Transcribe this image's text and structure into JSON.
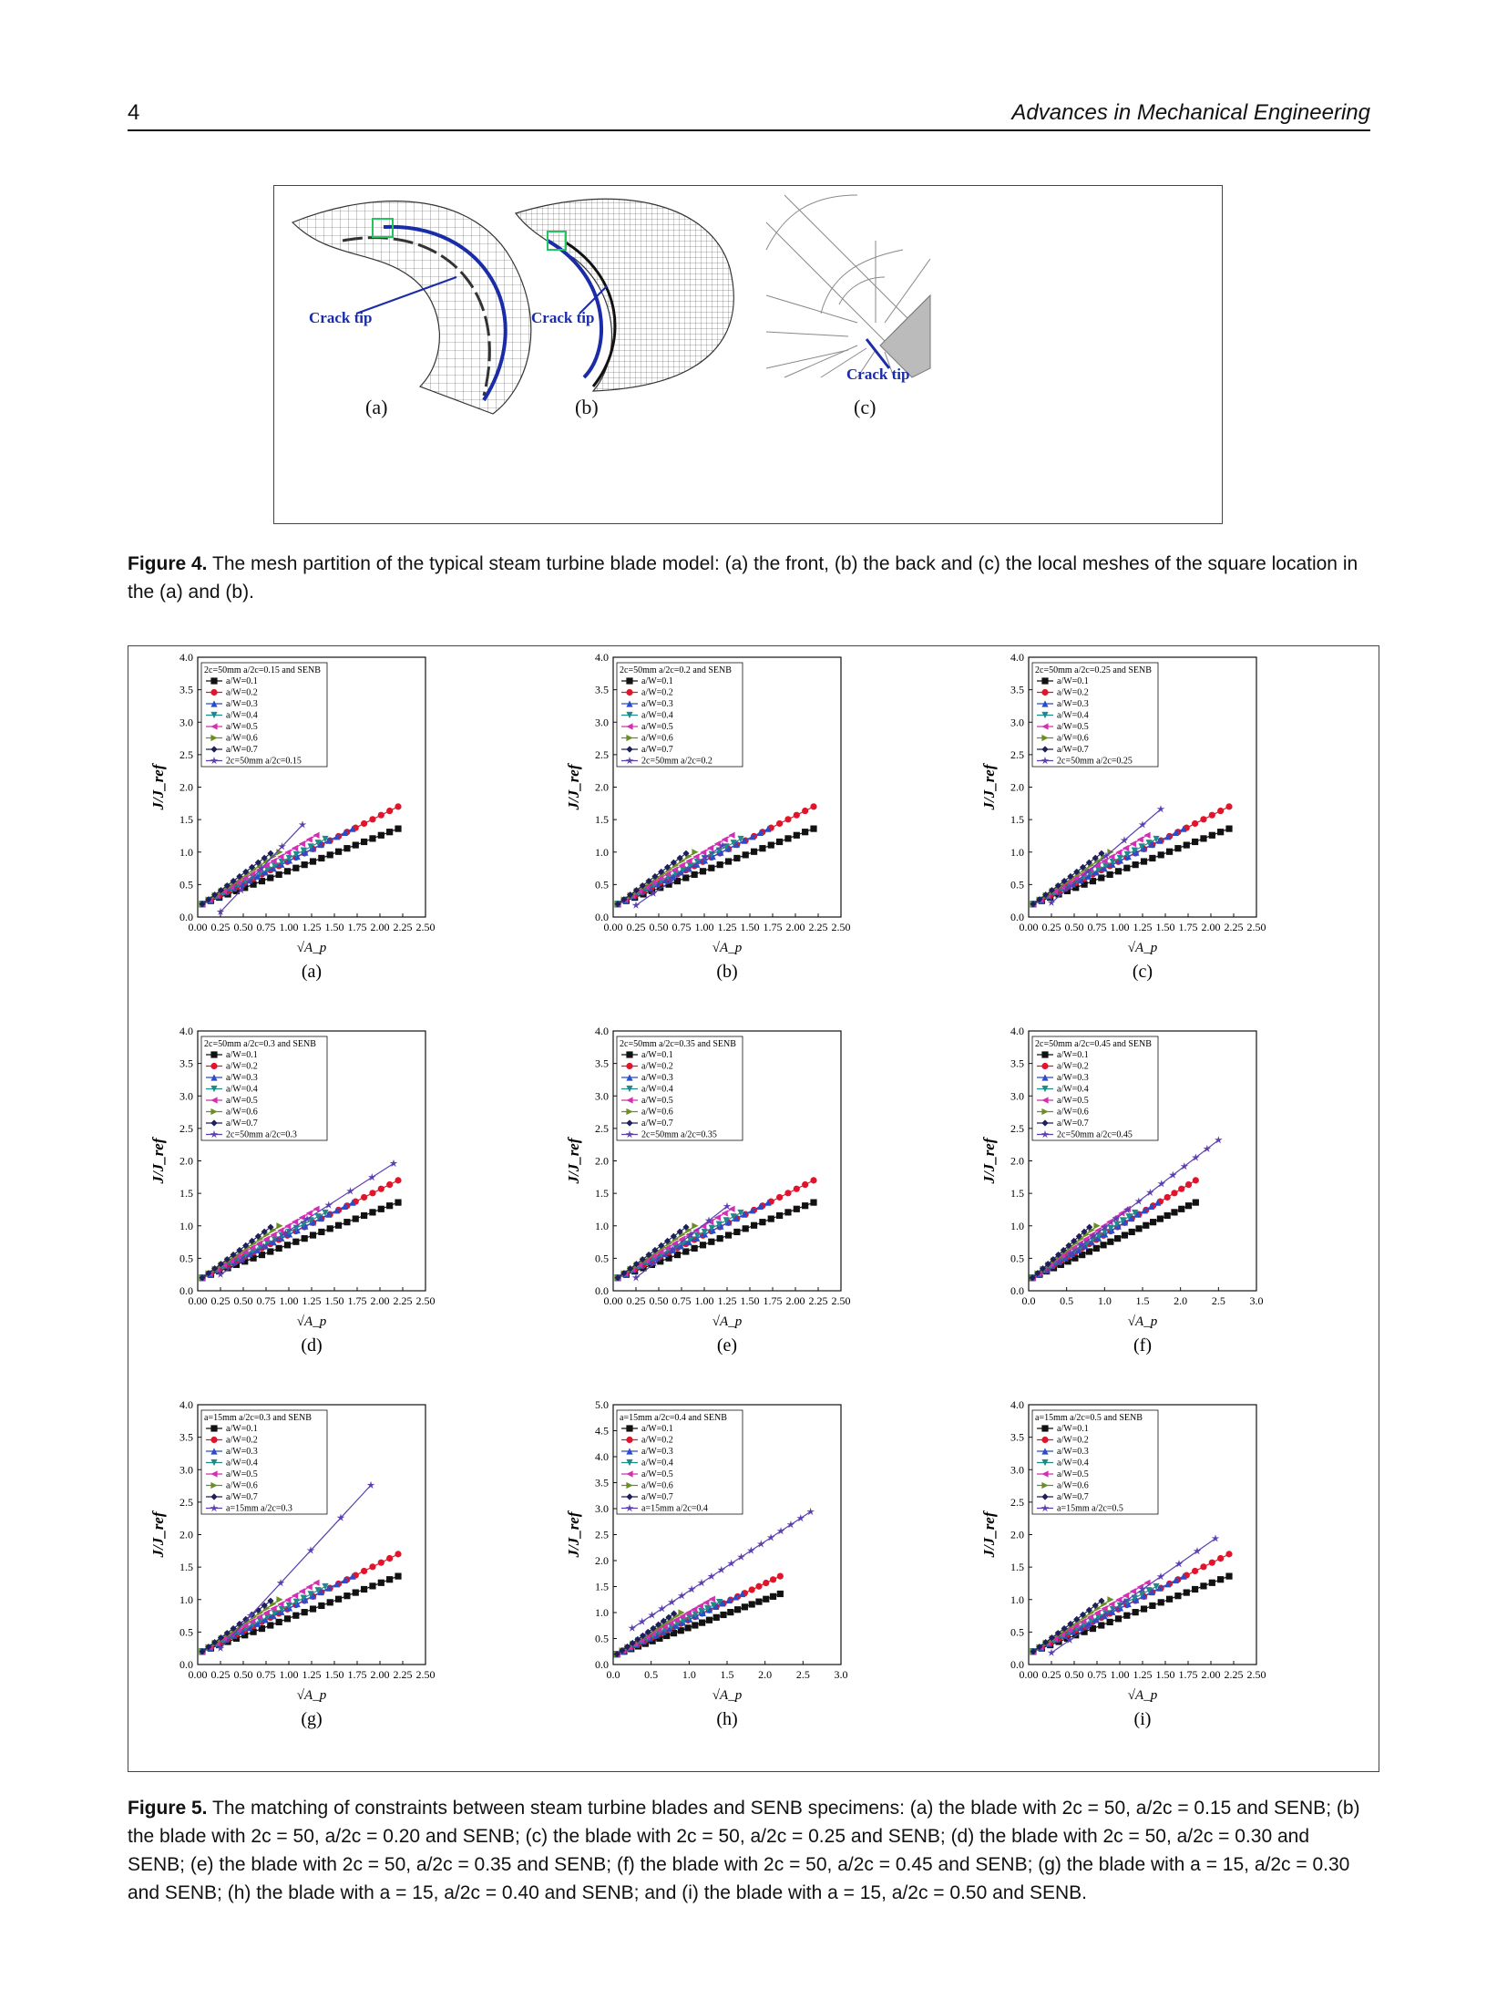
{
  "header": {
    "page_number": "4",
    "journal": "Advances in Mechanical Engineering"
  },
  "figure4": {
    "panels": [
      {
        "label": "(a)",
        "annotation": "Crack tip"
      },
      {
        "label": "(b)",
        "annotation": "Crack tip"
      },
      {
        "label": "(c)",
        "annotation": "Crack tip"
      }
    ],
    "caption_label": "Figure 4.",
    "caption_text": "The mesh partition of the typical steam turbine blade model: (a) the front, (b) the back and (c) the local meshes of the square location in the (a) and (b)."
  },
  "figure5": {
    "caption_label": "Figure 5.",
    "caption_text": "The matching of constraints between steam turbine blades and SENB specimens: (a) the blade with 2c = 50, a/2c = 0.15 and SENB; (b) the blade with 2c = 50, a/2c = 0.20 and SENB; (c) the blade with 2c = 50, a/2c = 0.25 and SENB; (d) the blade with 2c = 50, a/2c = 0.30 and SENB; (e) the blade with 2c = 50, a/2c = 0.35 and SENB; (f) the blade with 2c = 50, a/2c = 0.45 and SENB; (g) the blade with a = 15, a/2c = 0.30 and SENB; (h) the blade with a = 15, a/2c = 0.40 and SENB; and (i) the blade with a = 15, a/2c = 0.50 and SENB."
  },
  "colors": {
    "senb_series": [
      "#111111",
      "#e0142a",
      "#2a4cc8",
      "#1f8a8a",
      "#d42fb3",
      "#6b8e23",
      "#1f1f5a"
    ],
    "blade_series": "#5b3fb0"
  },
  "chart_data": [
    {
      "panel": "(a)",
      "type": "line",
      "ylabel": "J/J_ref",
      "xlabel": "√A_p",
      "xlim": [
        0,
        2.5
      ],
      "ylim": [
        0,
        4.0
      ],
      "xticks": [
        "0.00",
        "0.25",
        "0.50",
        "0.75",
        "1.00",
        "1.25",
        "1.50",
        "1.75",
        "2.00",
        "2.25",
        "2.50"
      ],
      "yticks": [
        "0.0",
        "0.5",
        "1.0",
        "1.5",
        "2.0",
        "2.5",
        "3.0",
        "3.5",
        "4.0"
      ],
      "legend_title": "2c=50mm a/2c=0.15 and SENB",
      "series": [
        {
          "name": "a/W=0.1",
          "x0": 0.05,
          "y0": 0.2,
          "x1": 2.2,
          "y1": 1.36,
          "n": 24
        },
        {
          "name": "a/W=0.2",
          "x0": 0.05,
          "y0": 0.2,
          "x1": 2.2,
          "y1": 1.7,
          "n": 24
        },
        {
          "name": "a/W=0.3",
          "x0": 0.05,
          "y0": 0.2,
          "x1": 1.7,
          "y1": 1.36,
          "n": 20
        },
        {
          "name": "a/W=0.4",
          "x0": 0.05,
          "y0": 0.2,
          "x1": 1.4,
          "y1": 1.2,
          "n": 18
        },
        {
          "name": "a/W=0.5",
          "x0": 0.05,
          "y0": 0.2,
          "x1": 1.3,
          "y1": 1.26,
          "n": 17
        },
        {
          "name": "a/W=0.6",
          "x0": 0.05,
          "y0": 0.2,
          "x1": 0.9,
          "y1": 1.0,
          "n": 13
        },
        {
          "name": "a/W=0.7",
          "x0": 0.05,
          "y0": 0.2,
          "x1": 0.8,
          "y1": 0.98,
          "n": 12
        },
        {
          "name": "2c=50mm a/2c=0.15",
          "x0": 0.25,
          "y0": 0.08,
          "x1": 1.15,
          "y1": 1.42,
          "n": 5
        }
      ]
    },
    {
      "panel": "(b)",
      "type": "line",
      "ylabel": "J/J_ref",
      "xlabel": "√A_p",
      "xlim": [
        0,
        2.5
      ],
      "ylim": [
        0,
        4.0
      ],
      "xticks": [
        "0.00",
        "0.25",
        "0.50",
        "0.75",
        "1.00",
        "1.25",
        "1.50",
        "1.75",
        "2.00",
        "2.25",
        "2.50"
      ],
      "yticks": [
        "0.0",
        "0.5",
        "1.0",
        "1.5",
        "2.0",
        "2.5",
        "3.0",
        "3.5",
        "4.0"
      ],
      "legend_title": "2c=50mm a/2c=0.2 and SENB",
      "series": [
        {
          "name": "a/W=0.1",
          "x0": 0.05,
          "y0": 0.2,
          "x1": 2.2,
          "y1": 1.36,
          "n": 24
        },
        {
          "name": "a/W=0.2",
          "x0": 0.05,
          "y0": 0.2,
          "x1": 2.2,
          "y1": 1.7,
          "n": 24
        },
        {
          "name": "a/W=0.3",
          "x0": 0.05,
          "y0": 0.2,
          "x1": 1.7,
          "y1": 1.36,
          "n": 20
        },
        {
          "name": "a/W=0.4",
          "x0": 0.05,
          "y0": 0.2,
          "x1": 1.4,
          "y1": 1.2,
          "n": 18
        },
        {
          "name": "a/W=0.5",
          "x0": 0.05,
          "y0": 0.2,
          "x1": 1.3,
          "y1": 1.26,
          "n": 17
        },
        {
          "name": "a/W=0.6",
          "x0": 0.05,
          "y0": 0.2,
          "x1": 0.9,
          "y1": 1.0,
          "n": 13
        },
        {
          "name": "a/W=0.7",
          "x0": 0.05,
          "y0": 0.2,
          "x1": 0.8,
          "y1": 0.98,
          "n": 12
        },
        {
          "name": "2c=50mm a/2c=0.2",
          "x0": 0.25,
          "y0": 0.18,
          "x1": 1.2,
          "y1": 1.1,
          "n": 6
        }
      ]
    },
    {
      "panel": "(c)",
      "type": "line",
      "ylabel": "J/J_ref",
      "xlabel": "√A_p",
      "xlim": [
        0,
        2.5
      ],
      "ylim": [
        0,
        4.0
      ],
      "xticks": [
        "0.00",
        "0.25",
        "0.50",
        "0.75",
        "1.00",
        "1.25",
        "1.50",
        "1.75",
        "2.00",
        "2.25",
        "2.50"
      ],
      "yticks": [
        "0.0",
        "0.5",
        "1.0",
        "1.5",
        "2.0",
        "2.5",
        "3.0",
        "3.5",
        "4.0"
      ],
      "legend_title": "2c=50mm a/2c=0.25 and SENB",
      "series": [
        {
          "name": "a/W=0.1",
          "x0": 0.05,
          "y0": 0.2,
          "x1": 2.2,
          "y1": 1.36,
          "n": 24
        },
        {
          "name": "a/W=0.2",
          "x0": 0.05,
          "y0": 0.2,
          "x1": 2.2,
          "y1": 1.7,
          "n": 24
        },
        {
          "name": "a/W=0.3",
          "x0": 0.05,
          "y0": 0.2,
          "x1": 1.7,
          "y1": 1.36,
          "n": 20
        },
        {
          "name": "a/W=0.4",
          "x0": 0.05,
          "y0": 0.2,
          "x1": 1.4,
          "y1": 1.2,
          "n": 18
        },
        {
          "name": "a/W=0.5",
          "x0": 0.05,
          "y0": 0.2,
          "x1": 1.3,
          "y1": 1.26,
          "n": 17
        },
        {
          "name": "a/W=0.6",
          "x0": 0.05,
          "y0": 0.2,
          "x1": 0.9,
          "y1": 1.0,
          "n": 13
        },
        {
          "name": "a/W=0.7",
          "x0": 0.05,
          "y0": 0.2,
          "x1": 0.8,
          "y1": 0.98,
          "n": 12
        },
        {
          "name": "2c=50mm a/2c=0.25",
          "x0": 0.25,
          "y0": 0.22,
          "x1": 1.45,
          "y1": 1.66,
          "n": 7
        }
      ]
    },
    {
      "panel": "(d)",
      "type": "line",
      "ylabel": "J/J_ref",
      "xlabel": "√A_p",
      "xlim": [
        0,
        2.5
      ],
      "ylim": [
        0,
        4.0
      ],
      "xticks": [
        "0.00",
        "0.25",
        "0.50",
        "0.75",
        "1.00",
        "1.25",
        "1.50",
        "1.75",
        "2.00",
        "2.25",
        "2.50"
      ],
      "yticks": [
        "0.0",
        "0.5",
        "1.0",
        "1.5",
        "2.0",
        "2.5",
        "3.0",
        "3.5",
        "4.0"
      ],
      "legend_title": "2c=50mm a/2c=0.3 and SENB",
      "series": [
        {
          "name": "a/W=0.1",
          "x0": 0.05,
          "y0": 0.2,
          "x1": 2.2,
          "y1": 1.36,
          "n": 24
        },
        {
          "name": "a/W=0.2",
          "x0": 0.05,
          "y0": 0.2,
          "x1": 2.2,
          "y1": 1.7,
          "n": 24
        },
        {
          "name": "a/W=0.3",
          "x0": 0.05,
          "y0": 0.2,
          "x1": 1.7,
          "y1": 1.36,
          "n": 20
        },
        {
          "name": "a/W=0.4",
          "x0": 0.05,
          "y0": 0.2,
          "x1": 1.4,
          "y1": 1.2,
          "n": 18
        },
        {
          "name": "a/W=0.5",
          "x0": 0.05,
          "y0": 0.2,
          "x1": 1.3,
          "y1": 1.26,
          "n": 17
        },
        {
          "name": "a/W=0.6",
          "x0": 0.05,
          "y0": 0.2,
          "x1": 0.9,
          "y1": 1.0,
          "n": 13
        },
        {
          "name": "a/W=0.7",
          "x0": 0.05,
          "y0": 0.2,
          "x1": 0.8,
          "y1": 0.98,
          "n": 12
        },
        {
          "name": "2c=50mm a/2c=0.3",
          "x0": 0.25,
          "y0": 0.25,
          "x1": 2.15,
          "y1": 1.96,
          "n": 9
        }
      ]
    },
    {
      "panel": "(e)",
      "type": "line",
      "ylabel": "J/J_ref",
      "xlabel": "√A_p",
      "xlim": [
        0,
        2.5
      ],
      "ylim": [
        0,
        4.0
      ],
      "xticks": [
        "0.00",
        "0.25",
        "0.50",
        "0.75",
        "1.00",
        "1.25",
        "1.50",
        "1.75",
        "2.00",
        "2.25",
        "2.50"
      ],
      "yticks": [
        "0.0",
        "0.5",
        "1.0",
        "1.5",
        "2.0",
        "2.5",
        "3.0",
        "3.5",
        "4.0"
      ],
      "legend_title": "2c=50mm a/2c=0.35 and SENB",
      "series": [
        {
          "name": "a/W=0.1",
          "x0": 0.05,
          "y0": 0.2,
          "x1": 2.2,
          "y1": 1.36,
          "n": 24
        },
        {
          "name": "a/W=0.2",
          "x0": 0.05,
          "y0": 0.2,
          "x1": 2.2,
          "y1": 1.7,
          "n": 24
        },
        {
          "name": "a/W=0.3",
          "x0": 0.05,
          "y0": 0.2,
          "x1": 1.7,
          "y1": 1.36,
          "n": 20
        },
        {
          "name": "a/W=0.4",
          "x0": 0.05,
          "y0": 0.2,
          "x1": 1.4,
          "y1": 1.2,
          "n": 18
        },
        {
          "name": "a/W=0.5",
          "x0": 0.05,
          "y0": 0.2,
          "x1": 1.3,
          "y1": 1.26,
          "n": 17
        },
        {
          "name": "a/W=0.6",
          "x0": 0.05,
          "y0": 0.2,
          "x1": 0.9,
          "y1": 1.0,
          "n": 13
        },
        {
          "name": "a/W=0.7",
          "x0": 0.05,
          "y0": 0.2,
          "x1": 0.8,
          "y1": 0.98,
          "n": 12
        },
        {
          "name": "2c=50mm a/2c=0.35",
          "x0": 0.25,
          "y0": 0.2,
          "x1": 1.25,
          "y1": 1.3,
          "n": 6
        }
      ]
    },
    {
      "panel": "(f)",
      "type": "line",
      "ylabel": "J/J_ref",
      "xlabel": "√A_p",
      "xlim": [
        0,
        3.0
      ],
      "ylim": [
        0,
        4.0
      ],
      "xticks": [
        "0.0",
        "0.5",
        "1.0",
        "1.5",
        "2.0",
        "2.5",
        "3.0"
      ],
      "yticks": [
        "0.0",
        "0.5",
        "1.0",
        "1.5",
        "2.0",
        "2.5",
        "3.0",
        "3.5",
        "4.0"
      ],
      "legend_title": "2c=50mm a/2c=0.45 and SENB",
      "series": [
        {
          "name": "a/W=0.1",
          "x0": 0.05,
          "y0": 0.2,
          "x1": 2.2,
          "y1": 1.36,
          "n": 24
        },
        {
          "name": "a/W=0.2",
          "x0": 0.05,
          "y0": 0.2,
          "x1": 2.2,
          "y1": 1.7,
          "n": 24
        },
        {
          "name": "a/W=0.3",
          "x0": 0.05,
          "y0": 0.2,
          "x1": 1.7,
          "y1": 1.36,
          "n": 20
        },
        {
          "name": "a/W=0.4",
          "x0": 0.05,
          "y0": 0.2,
          "x1": 1.4,
          "y1": 1.2,
          "n": 18
        },
        {
          "name": "a/W=0.5",
          "x0": 0.05,
          "y0": 0.2,
          "x1": 1.3,
          "y1": 1.26,
          "n": 17
        },
        {
          "name": "a/W=0.6",
          "x0": 0.05,
          "y0": 0.2,
          "x1": 0.9,
          "y1": 1.0,
          "n": 13
        },
        {
          "name": "a/W=0.7",
          "x0": 0.05,
          "y0": 0.2,
          "x1": 0.8,
          "y1": 0.98,
          "n": 12
        },
        {
          "name": "2c=50mm a/2c=0.45",
          "x0": 0.25,
          "y0": 0.3,
          "x1": 2.5,
          "y1": 2.32,
          "n": 16
        }
      ]
    },
    {
      "panel": "(g)",
      "type": "line",
      "ylabel": "J/J_ref",
      "xlabel": "√A_p",
      "xlim": [
        0,
        2.5
      ],
      "ylim": [
        0,
        4.0
      ],
      "xticks": [
        "0.00",
        "0.25",
        "0.50",
        "0.75",
        "1.00",
        "1.25",
        "1.50",
        "1.75",
        "2.00",
        "2.25",
        "2.50"
      ],
      "yticks": [
        "0.0",
        "0.5",
        "1.0",
        "1.5",
        "2.0",
        "2.5",
        "3.0",
        "3.5",
        "4.0"
      ],
      "legend_title": "a=15mm a/2c=0.3 and SENB",
      "series": [
        {
          "name": "a/W=0.1",
          "x0": 0.05,
          "y0": 0.2,
          "x1": 2.2,
          "y1": 1.36,
          "n": 24
        },
        {
          "name": "a/W=0.2",
          "x0": 0.05,
          "y0": 0.2,
          "x1": 2.2,
          "y1": 1.7,
          "n": 24
        },
        {
          "name": "a/W=0.3",
          "x0": 0.05,
          "y0": 0.2,
          "x1": 1.7,
          "y1": 1.36,
          "n": 20
        },
        {
          "name": "a/W=0.4",
          "x0": 0.05,
          "y0": 0.2,
          "x1": 1.4,
          "y1": 1.2,
          "n": 18
        },
        {
          "name": "a/W=0.5",
          "x0": 0.05,
          "y0": 0.2,
          "x1": 1.3,
          "y1": 1.26,
          "n": 17
        },
        {
          "name": "a/W=0.6",
          "x0": 0.05,
          "y0": 0.2,
          "x1": 0.9,
          "y1": 1.0,
          "n": 13
        },
        {
          "name": "a/W=0.7",
          "x0": 0.05,
          "y0": 0.2,
          "x1": 0.8,
          "y1": 0.98,
          "n": 12
        },
        {
          "name": "a=15mm a/2c=0.3",
          "x0": 0.25,
          "y0": 0.25,
          "x1": 1.9,
          "y1": 2.76,
          "n": 6
        }
      ]
    },
    {
      "panel": "(h)",
      "type": "line",
      "ylabel": "J/J_ref",
      "xlabel": "√A_p",
      "xlim": [
        0,
        3.0
      ],
      "ylim": [
        0,
        5.0
      ],
      "xticks": [
        "0.0",
        "0.5",
        "1.0",
        "1.5",
        "2.0",
        "2.5",
        "3.0"
      ],
      "yticks": [
        "0.0",
        "0.5",
        "1.0",
        "1.5",
        "2.0",
        "2.5",
        "3.0",
        "3.5",
        "4.0",
        "4.5",
        "5.0"
      ],
      "legend_title": "a=15mm a/2c=0.4 and SENB",
      "series": [
        {
          "name": "a/W=0.1",
          "x0": 0.05,
          "y0": 0.2,
          "x1": 2.2,
          "y1": 1.36,
          "n": 24
        },
        {
          "name": "a/W=0.2",
          "x0": 0.05,
          "y0": 0.2,
          "x1": 2.2,
          "y1": 1.7,
          "n": 24
        },
        {
          "name": "a/W=0.3",
          "x0": 0.05,
          "y0": 0.2,
          "x1": 1.7,
          "y1": 1.36,
          "n": 20
        },
        {
          "name": "a/W=0.4",
          "x0": 0.05,
          "y0": 0.2,
          "x1": 1.4,
          "y1": 1.2,
          "n": 18
        },
        {
          "name": "a/W=0.5",
          "x0": 0.05,
          "y0": 0.2,
          "x1": 1.3,
          "y1": 1.26,
          "n": 17
        },
        {
          "name": "a/W=0.6",
          "x0": 0.05,
          "y0": 0.2,
          "x1": 0.9,
          "y1": 1.0,
          "n": 13
        },
        {
          "name": "a/W=0.7",
          "x0": 0.05,
          "y0": 0.2,
          "x1": 0.8,
          "y1": 0.98,
          "n": 12
        },
        {
          "name": "a=15mm a/2c=0.4",
          "x0": 0.25,
          "y0": 0.7,
          "x1": 2.6,
          "y1": 2.94,
          "n": 19
        }
      ]
    },
    {
      "panel": "(i)",
      "type": "line",
      "ylabel": "J/J_ref",
      "xlabel": "√A_p",
      "xlim": [
        0,
        2.5
      ],
      "ylim": [
        0,
        4.0
      ],
      "xticks": [
        "0.00",
        "0.25",
        "0.50",
        "0.75",
        "1.00",
        "1.25",
        "1.50",
        "1.75",
        "2.00",
        "2.25",
        "2.50"
      ],
      "yticks": [
        "0.0",
        "0.5",
        "1.0",
        "1.5",
        "2.0",
        "2.5",
        "3.0",
        "3.5",
        "4.0"
      ],
      "legend_title": "a=15mm a/2c=0.5 and SENB",
      "series": [
        {
          "name": "a/W=0.1",
          "x0": 0.05,
          "y0": 0.2,
          "x1": 2.2,
          "y1": 1.36,
          "n": 24
        },
        {
          "name": "a/W=0.2",
          "x0": 0.05,
          "y0": 0.2,
          "x1": 2.2,
          "y1": 1.7,
          "n": 24
        },
        {
          "name": "a/W=0.3",
          "x0": 0.05,
          "y0": 0.2,
          "x1": 1.7,
          "y1": 1.36,
          "n": 20
        },
        {
          "name": "a/W=0.4",
          "x0": 0.05,
          "y0": 0.2,
          "x1": 1.4,
          "y1": 1.2,
          "n": 18
        },
        {
          "name": "a/W=0.5",
          "x0": 0.05,
          "y0": 0.2,
          "x1": 1.3,
          "y1": 1.26,
          "n": 17
        },
        {
          "name": "a/W=0.6",
          "x0": 0.05,
          "y0": 0.2,
          "x1": 0.9,
          "y1": 1.0,
          "n": 13
        },
        {
          "name": "a/W=0.7",
          "x0": 0.05,
          "y0": 0.2,
          "x1": 0.8,
          "y1": 0.98,
          "n": 12
        },
        {
          "name": "a=15mm a/2c=0.5",
          "x0": 0.25,
          "y0": 0.18,
          "x1": 2.05,
          "y1": 1.94,
          "n": 10
        }
      ]
    }
  ]
}
